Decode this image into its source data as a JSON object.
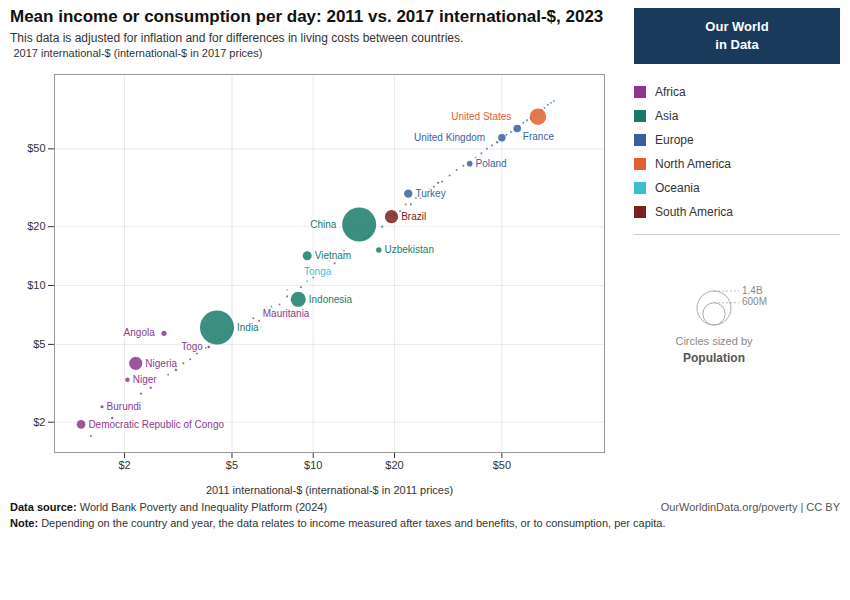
{
  "chart_data": {
    "type": "scatter",
    "title": "Mean income or consumption per day: 2011 vs. 2017 international-$, 2023",
    "subtitle": "This data is adjusted for inflation and for differences in living costs between countries.",
    "xlabel": "2011 international-$ (international-$ in 2011 prices)",
    "ylabel": "2017 international-$ (international-$ in 2017 prices)",
    "source": "Data source: World Bank Poverty and Inequality Platform (2024)",
    "note": "Note: Depending on the country and year, the data relates to income measured after taxes and benefits, or to consumption, per capita.",
    "url": "OurWorldinData.org/poverty | CC BY",
    "logo": [
      "Our World",
      "in Data"
    ],
    "log": true,
    "grid": true,
    "legend": "right",
    "xlim": [
      1.1,
      120
    ],
    "ylim": [
      1.4,
      120
    ],
    "xticks": [
      {
        "value": 2,
        "label": "$2"
      },
      {
        "value": 5,
        "label": "$5"
      },
      {
        "value": 10,
        "label": "$10"
      },
      {
        "value": 20,
        "label": "$20"
      },
      {
        "value": 50,
        "label": "$50"
      }
    ],
    "yticks": [
      {
        "value": 2,
        "label": "$2"
      },
      {
        "value": 5,
        "label": "$5"
      },
      {
        "value": 10,
        "label": "$10"
      },
      {
        "value": 20,
        "label": "$20"
      },
      {
        "value": 50,
        "label": "$50"
      }
    ],
    "series": [
      {
        "name": "Africa",
        "color": "#8b3a8b",
        "x": [
          1.5,
          1.6,
          1.8,
          2.0,
          2.3,
          2.5,
          2.6,
          2.9,
          3.1,
          3.3,
          3.5,
          3.7,
          4.0,
          4.5,
          5.0,
          5.5,
          6.0,
          6.8,
          7.5,
          8.0,
          9.0,
          10.0,
          11.0,
          12.0,
          1.38,
          1.65,
          2.05,
          2.2,
          2.8,
          4.1,
          6.3
        ],
        "values": [
          1.7,
          1.9,
          2.1,
          2.4,
          2.8,
          3.0,
          3.2,
          3.5,
          3.7,
          4.0,
          4.2,
          4.5,
          4.8,
          5.3,
          5.8,
          6.2,
          6.8,
          7.5,
          8.0,
          8.8,
          9.8,
          11.0,
          12.0,
          13.0,
          1.95,
          2.4,
          3.3,
          4.0,
          5.7,
          4.85,
          6.6
        ],
        "sizes": [
          5000000,
          3000000,
          8000000,
          4000000,
          6000000,
          7000000,
          5000000,
          4000000,
          9000000,
          6000000,
          5000000,
          7000000,
          4000000,
          4000000,
          4000000,
          5000000,
          5000000,
          4000000,
          4000000,
          5000000,
          6000000,
          4000000,
          5000000,
          6000000,
          90000000,
          12000000,
          24000000,
          210000000,
          33000000,
          8000000,
          4500000
        ],
        "labels": [
          null,
          null,
          null,
          null,
          null,
          null,
          null,
          null,
          null,
          null,
          null,
          null,
          null,
          null,
          null,
          null,
          null,
          null,
          null,
          null,
          null,
          null,
          null,
          null,
          "Democratic Republic of Congo",
          "Burundi",
          "Niger",
          "Nigeria",
          "Angola",
          "Togo",
          "Mauritania"
        ]
      },
      {
        "name": "Asia",
        "color": "#1a7a6a",
        "x": [
          7.0,
          11.5,
          13.0,
          15.5,
          16.0,
          18.0,
          19.0,
          20.0,
          21.0,
          23.0,
          25.0,
          4.4,
          9.5,
          8.8,
          14.8,
          17.5
        ],
        "values": [
          7.8,
          13.5,
          15.0,
          17.5,
          18.0,
          20.0,
          21.5,
          23.0,
          24.0,
          26.0,
          28.0,
          6.1,
          14.2,
          8.5,
          20.5,
          15.2
        ],
        "sizes": [
          4000000,
          5000000,
          5000000,
          5000000,
          5000000,
          6000000,
          5000000,
          5000000,
          6000000,
          5000000,
          5000000,
          1400000000,
          97000000,
          275000000,
          1400000000,
          35000000
        ],
        "labels": [
          null,
          null,
          null,
          null,
          null,
          null,
          null,
          null,
          null,
          null,
          null,
          "India",
          "Vietnam",
          "Indonesia",
          "China",
          "Uzbekistan"
        ]
      },
      {
        "name": "Europe",
        "color": "#3a5fa0",
        "x": [
          26.0,
          28.0,
          30.0,
          32.0,
          34.0,
          36.0,
          40.0,
          42.0,
          44.0,
          46.0,
          48.0,
          52.0,
          54.0,
          56.0,
          58.0,
          60.0,
          62.0,
          64.0,
          66.0,
          70.0,
          72.0,
          74.0,
          76.0,
          78.0,
          38.0,
          50.0,
          57.0,
          22.5
        ],
        "values": [
          30.0,
          32.0,
          34.0,
          36.5,
          39.0,
          41.0,
          45.0,
          47.5,
          50.0,
          52.0,
          54.0,
          59.0,
          61.0,
          63.0,
          65.0,
          68.0,
          70.0,
          72.0,
          74.0,
          79.0,
          81.0,
          84.0,
          86.0,
          88.0,
          42.0,
          57.0,
          63.5,
          29.5
        ],
        "sizes": [
          5000000,
          5000000,
          5000000,
          5000000,
          5000000,
          5000000,
          5000000,
          5000000,
          5000000,
          5000000,
          7000000,
          5000000,
          5000000,
          5000000,
          5000000,
          5000000,
          5000000,
          5000000,
          5000000,
          5000000,
          4000000,
          5000000,
          4000000,
          4000000,
          38000000,
          67000000,
          68000000,
          85000000
        ],
        "labels": [
          null,
          null,
          null,
          null,
          null,
          null,
          null,
          null,
          null,
          null,
          null,
          null,
          null,
          null,
          null,
          null,
          null,
          null,
          null,
          null,
          null,
          null,
          null,
          null,
          "Poland",
          "United Kingdom",
          "France",
          "Turkey"
        ]
      },
      {
        "name": "North America",
        "color": "#e06030",
        "x": [
          22.0,
          24.0,
          70.0,
          68.0
        ],
        "values": [
          26.0,
          28.0,
          76.0,
          73.0
        ],
        "sizes": [
          5000000,
          5000000,
          4000000,
          330000000
        ],
        "labels": [
          null,
          null,
          null,
          "United States"
        ]
      },
      {
        "name": "Oceania",
        "color": "#3abfcf",
        "x": [
          9.5,
          10.5,
          8.0,
          6.5,
          9.0
        ],
        "values": [
          10.5,
          11.5,
          9.5,
          7.2,
          11.8
        ],
        "sizes": [
          5000000,
          3000000,
          4000000,
          3000000,
          100000
        ],
        "labels": [
          null,
          null,
          null,
          null,
          "Tonga"
        ]
      },
      {
        "name": "South America",
        "color": "#7b2020",
        "x": [
          25.0,
          27.0,
          29.0,
          19.5
        ],
        "values": [
          29.0,
          31.0,
          33.5,
          22.5
        ],
        "sizes": [
          8000000,
          6000000,
          5000000,
          215000000
        ],
        "labels": [
          null,
          null,
          null,
          "Brazil"
        ]
      }
    ],
    "size_legend": {
      "title": "Circles sized by",
      "label": "Population",
      "values": [
        1400000000,
        600000000
      ],
      "value_labels": [
        "1.4B",
        "600M"
      ]
    }
  }
}
